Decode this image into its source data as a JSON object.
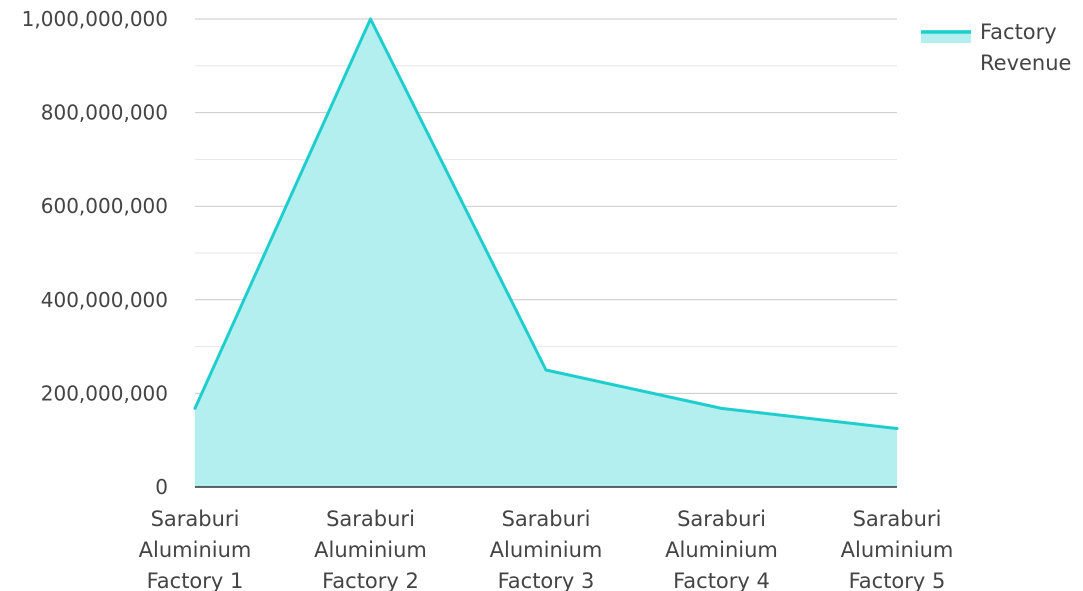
{
  "chart_data": {
    "type": "area",
    "categories": [
      "Saraburi Aluminium Factory 1",
      "Saraburi Aluminium Factory 2",
      "Saraburi Aluminium Factory 3",
      "Saraburi Aluminium Factory 4",
      "Saraburi Aluminium Factory 5"
    ],
    "series": [
      {
        "name": "Factory Revenue",
        "values": [
          168000000,
          1000000000,
          250000000,
          168000000,
          125000000
        ]
      }
    ],
    "yticks": [
      "0",
      "200,000,000",
      "400,000,000",
      "600,000,000",
      "800,000,000",
      "1,000,000,000"
    ],
    "ylim": [
      0,
      1000000000
    ],
    "grid": true,
    "legend_position": "top-right",
    "colors": {
      "line": "#1ecdcd",
      "fill": "#b2efee",
      "grid": "#d6d6d6",
      "axis": "#333333",
      "text": "#444444"
    }
  }
}
